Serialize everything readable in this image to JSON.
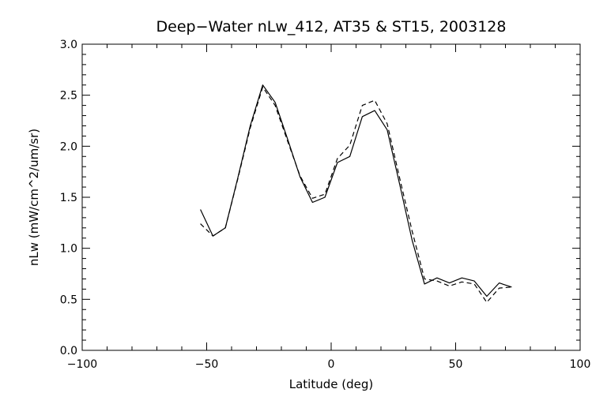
{
  "chart_data": {
    "type": "line",
    "title": "Deep−Water nLw_412, AT35 & ST15, 2003128",
    "xlabel": "Latitude (deg)",
    "ylabel": "nLw (mW/cm^2/um/sr)",
    "xlim": [
      -100,
      100
    ],
    "ylim": [
      0.0,
      3.0
    ],
    "xticks": [
      -100,
      -50,
      0,
      50,
      100
    ],
    "xtick_labels": [
      "−100",
      "−50",
      "0",
      "50",
      "100"
    ],
    "yticks": [
      0.0,
      0.5,
      1.0,
      1.5,
      2.0,
      2.5,
      3.0
    ],
    "ytick_labels": [
      "0.0",
      "0.5",
      "1.0",
      "1.5",
      "2.0",
      "2.5",
      "3.0"
    ],
    "grid": false,
    "legend": "none",
    "series": [
      {
        "style": "solid",
        "color": "#000000",
        "x": [
          -52.5,
          -47.5,
          -42.5,
          -37.5,
          -32.5,
          -27.5,
          -22.5,
          -17.5,
          -12.5,
          -7.5,
          -2.5,
          2.5,
          7.5,
          12.5,
          17.5,
          22.5,
          27.5,
          32.5,
          37.5,
          42.5,
          47.5,
          52.5,
          57.5,
          62.5,
          67.5,
          72.5
        ],
        "y": [
          1.38,
          1.12,
          1.2,
          1.69,
          2.2,
          2.6,
          2.43,
          2.07,
          1.7,
          1.45,
          1.5,
          1.84,
          1.9,
          2.29,
          2.35,
          2.16,
          1.63,
          1.08,
          0.65,
          0.71,
          0.66,
          0.71,
          0.68,
          0.53,
          0.66,
          0.62
        ]
      },
      {
        "style": "dashed",
        "color": "#000000",
        "x": [
          -52.5,
          -47.5,
          -42.5,
          -37.5,
          -32.5,
          -27.5,
          -22.5,
          -17.5,
          -12.5,
          -7.5,
          -2.5,
          2.5,
          7.5,
          12.5,
          17.5,
          22.5,
          27.5,
          32.5,
          37.5,
          42.5,
          47.5,
          52.5,
          57.5,
          62.5,
          67.5,
          72.5
        ],
        "y": [
          1.24,
          1.12,
          1.2,
          1.68,
          2.18,
          2.58,
          2.4,
          2.05,
          1.71,
          1.49,
          1.53,
          1.88,
          2.01,
          2.4,
          2.45,
          2.22,
          1.69,
          1.17,
          0.7,
          0.68,
          0.63,
          0.67,
          0.65,
          0.47,
          0.61,
          0.62
        ]
      }
    ]
  }
}
